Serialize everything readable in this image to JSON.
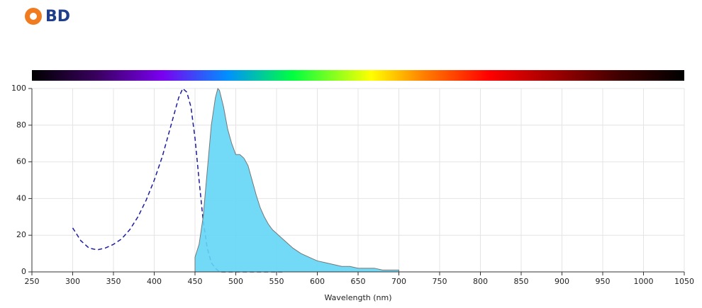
{
  "logo": "BD",
  "chart_data": {
    "type": "area",
    "xlabel": "Wavelength (nm)",
    "xlim": [
      250,
      1050
    ],
    "xticks": [
      250,
      300,
      350,
      400,
      450,
      500,
      550,
      600,
      650,
      700,
      750,
      800,
      850,
      900,
      950,
      1000,
      1050
    ],
    "ylim": [
      0,
      100
    ],
    "yticks": [
      0,
      20,
      40,
      60,
      80,
      100
    ],
    "grid": true,
    "series": [
      {
        "color": "#1c1c9e",
        "dashed": true,
        "filled": false,
        "x": [
          300,
          310,
          320,
          330,
          340,
          350,
          360,
          370,
          380,
          390,
          400,
          410,
          420,
          430,
          435,
          440,
          445,
          450,
          455,
          460,
          465,
          470,
          475,
          480,
          500,
          530,
          560
        ],
        "values": [
          24,
          17,
          13,
          12,
          13,
          15,
          18,
          23,
          30,
          39,
          50,
          63,
          79,
          95,
          100,
          98,
          90,
          73,
          50,
          28,
          13,
          5,
          2,
          0,
          0,
          0,
          0
        ]
      },
      {
        "color": "#63d6f6",
        "dashed": false,
        "filled": true,
        "x": [
          450,
          455,
          460,
          465,
          470,
          475,
          478,
          480,
          485,
          490,
          495,
          500,
          505,
          510,
          515,
          520,
          525,
          530,
          535,
          540,
          545,
          550,
          560,
          570,
          580,
          590,
          600,
          610,
          620,
          630,
          640,
          650,
          660,
          670,
          680,
          690,
          700
        ],
        "values": [
          8,
          15,
          30,
          55,
          80,
          95,
          100,
          99,
          90,
          78,
          70,
          64,
          64,
          62,
          58,
          50,
          42,
          35,
          30,
          26,
          23,
          21,
          17,
          13,
          10,
          8,
          6,
          5,
          4,
          3,
          3,
          2,
          2,
          2,
          1,
          1,
          1
        ]
      }
    ]
  }
}
